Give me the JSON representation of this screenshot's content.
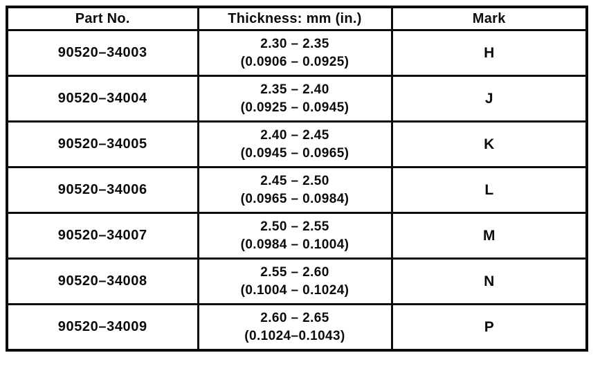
{
  "table": {
    "headers": {
      "part_no": "Part No.",
      "thickness": "Thickness: mm (in.)",
      "mark": "Mark"
    },
    "rows": [
      {
        "part_no": "90520–34003",
        "thickness_mm": "2.30 – 2.35",
        "thickness_in": "(0.0906 – 0.0925)",
        "mark": "H"
      },
      {
        "part_no": "90520–34004",
        "thickness_mm": "2.35 – 2.40",
        "thickness_in": "(0.0925 – 0.0945)",
        "mark": "J"
      },
      {
        "part_no": "90520–34005",
        "thickness_mm": "2.40 – 2.45",
        "thickness_in": "(0.0945 – 0.0965)",
        "mark": "K"
      },
      {
        "part_no": "90520–34006",
        "thickness_mm": "2.45 – 2.50",
        "thickness_in": "(0.0965 – 0.0984)",
        "mark": "L"
      },
      {
        "part_no": "90520–34007",
        "thickness_mm": "2.50 – 2.55",
        "thickness_in": "(0.0984 – 0.1004)",
        "mark": "M"
      },
      {
        "part_no": "90520–34008",
        "thickness_mm": "2.55 – 2.60",
        "thickness_in": "(0.1004 – 0.1024)",
        "mark": "N"
      },
      {
        "part_no": "90520–34009",
        "thickness_mm": "2.60 – 2.65",
        "thickness_in": "(0.1024–0.1043)",
        "mark": "P"
      }
    ]
  }
}
